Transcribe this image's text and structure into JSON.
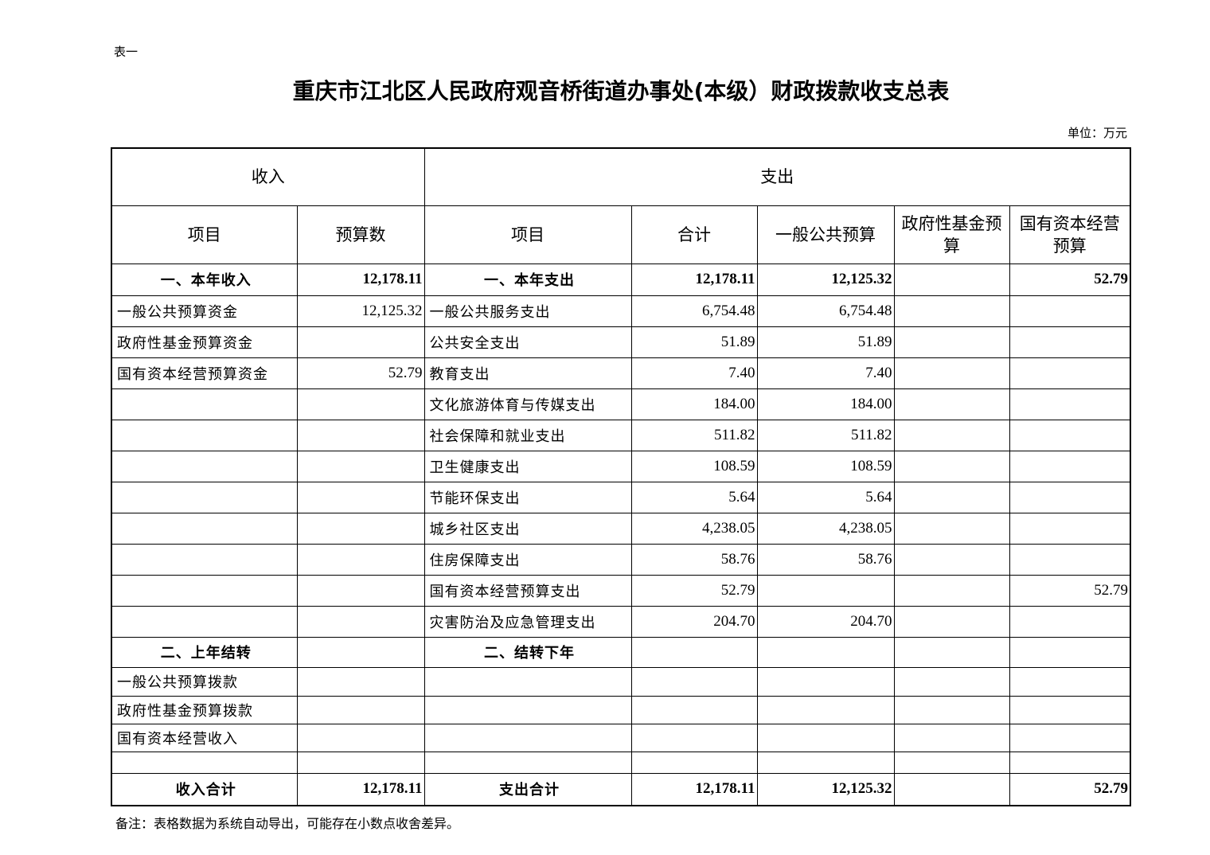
{
  "table_label": "表一",
  "title": "重庆市江北区人民政府观音桥街道办事处(本级）财政拨款收支总表",
  "unit": "单位：万元",
  "header": {
    "income": "收入",
    "expenditure": "支出",
    "columns": [
      "项目",
      "预算数",
      "项目",
      "合计",
      "一般公共预算",
      "政府性基金预算",
      "国有资本经营预算"
    ]
  },
  "rows": [
    {
      "bold": true,
      "cells": [
        "一、本年收入",
        "12,178.11",
        "一、本年支出",
        "12,178.11",
        "12,125.32",
        "",
        "52.79"
      ]
    },
    {
      "bold": false,
      "cells": [
        "一般公共预算资金",
        "12,125.32",
        "一般公共服务支出",
        "6,754.48",
        "6,754.48",
        "",
        ""
      ]
    },
    {
      "bold": false,
      "cells": [
        "政府性基金预算资金",
        "",
        "公共安全支出",
        "51.89",
        "51.89",
        "",
        ""
      ]
    },
    {
      "bold": false,
      "cells": [
        "国有资本经营预算资金",
        "52.79",
        "教育支出",
        "7.40",
        "7.40",
        "",
        ""
      ]
    },
    {
      "bold": false,
      "cells": [
        "",
        "",
        "文化旅游体育与传媒支出",
        "184.00",
        "184.00",
        "",
        ""
      ]
    },
    {
      "bold": false,
      "cells": [
        "",
        "",
        "社会保障和就业支出",
        "511.82",
        "511.82",
        "",
        ""
      ]
    },
    {
      "bold": false,
      "cells": [
        "",
        "",
        "卫生健康支出",
        "108.59",
        "108.59",
        "",
        ""
      ]
    },
    {
      "bold": false,
      "cells": [
        "",
        "",
        "节能环保支出",
        "5.64",
        "5.64",
        "",
        ""
      ]
    },
    {
      "bold": false,
      "cells": [
        "",
        "",
        "城乡社区支出",
        "4,238.05",
        "4,238.05",
        "",
        ""
      ]
    },
    {
      "bold": false,
      "cells": [
        "",
        "",
        "住房保障支出",
        "58.76",
        "58.76",
        "",
        ""
      ]
    },
    {
      "bold": false,
      "cells": [
        "",
        "",
        "国有资本经营预算支出",
        "52.79",
        "",
        "",
        "52.79"
      ]
    },
    {
      "bold": false,
      "cells": [
        "",
        "",
        "灾害防治及应急管理支出",
        "204.70",
        "204.70",
        "",
        ""
      ]
    },
    {
      "bold": true,
      "cells": [
        "二、上年结转",
        "",
        "二、结转下年",
        "",
        "",
        "",
        ""
      ]
    },
    {
      "bold": false,
      "cells": [
        "一般公共预算拨款",
        "",
        "",
        "",
        "",
        "",
        ""
      ]
    },
    {
      "bold": false,
      "cells": [
        "政府性基金预算拨款",
        "",
        "",
        "",
        "",
        "",
        ""
      ]
    },
    {
      "bold": false,
      "cells": [
        "国有资本经营收入",
        "",
        "",
        "",
        "",
        "",
        ""
      ]
    },
    {
      "bold": false,
      "cells": [
        "",
        "",
        "",
        "",
        "",
        "",
        ""
      ]
    },
    {
      "bold": true,
      "cells": [
        "收入合计",
        "12,178.11",
        "支出合计",
        "12,178.11",
        "12,125.32",
        "",
        "52.79"
      ]
    }
  ],
  "note": "备注：表格数据为系统自动导出，可能存在小数点收舍差异。"
}
